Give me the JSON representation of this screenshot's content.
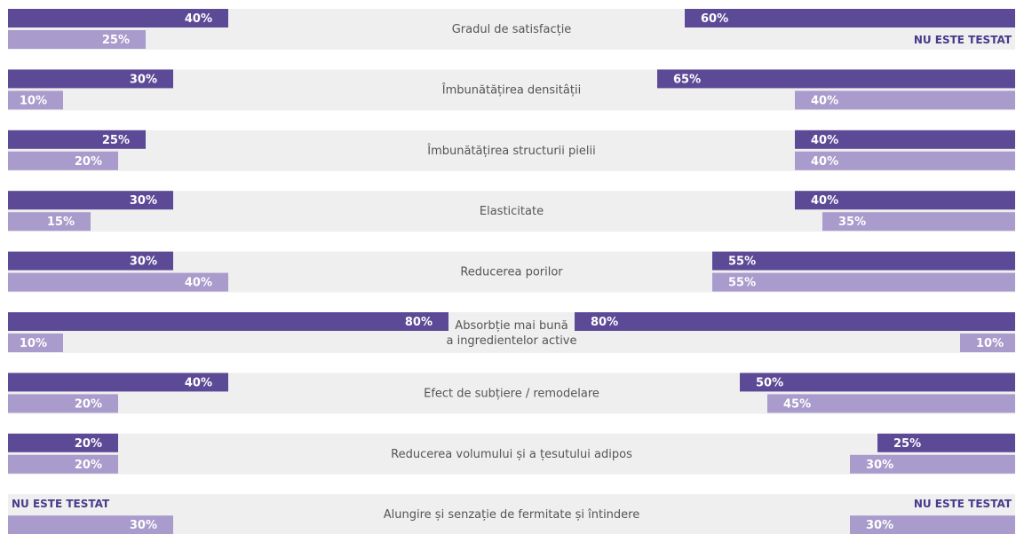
{
  "chart_data": {
    "type": "butterfly",
    "categories": [
      [
        "Gradul de satisfacție"
      ],
      [
        "Îmbunătățirea densitâții"
      ],
      [
        "Îmbunătățirea structurii pielii"
      ],
      [
        "Elasticitate"
      ],
      [
        "Reducerea porilor"
      ],
      [
        "Absorbție mai bună",
        "a ingredientelor active"
      ],
      [
        "Efect de subțiere / remodelare"
      ],
      [
        "Reducerea volumului și a țesutului adipos"
      ],
      [
        "Alungire și senzație de fermitate și întindere"
      ]
    ],
    "series": [
      {
        "side": "left",
        "color": "#5c4a96",
        "values": [
          40,
          30,
          25,
          30,
          30,
          80,
          40,
          20,
          null
        ],
        "value_labels": [
          "40%",
          "30%",
          "25%",
          "30%",
          "30%",
          "80%",
          "40%",
          "20%",
          "NU ESTE TESTAT"
        ]
      },
      {
        "side": "left",
        "color": "#a99bcc",
        "values": [
          25,
          10,
          20,
          15,
          40,
          10,
          20,
          20,
          30
        ],
        "value_labels": [
          "25%",
          "10%",
          "20%",
          "15%",
          "40%",
          "10%",
          "20%",
          "20%",
          "30%"
        ]
      },
      {
        "side": "right",
        "color": "#5c4a96",
        "values": [
          60,
          65,
          40,
          40,
          55,
          80,
          50,
          25,
          null
        ],
        "value_labels": [
          "60%",
          "65%",
          "40%",
          "40%",
          "55%",
          "80%",
          "50%",
          "25%",
          "NU ESTE TESTAT"
        ]
      },
      {
        "side": "right",
        "color": "#a99bcc",
        "values": [
          null,
          40,
          40,
          35,
          55,
          10,
          45,
          30,
          30
        ],
        "value_labels": [
          "NU ESTE TESTAT",
          "40%",
          "40%",
          "35%",
          "55%",
          "10%",
          "45%",
          "30%",
          "30%"
        ]
      }
    ],
    "xlim": [
      0,
      100
    ]
  }
}
